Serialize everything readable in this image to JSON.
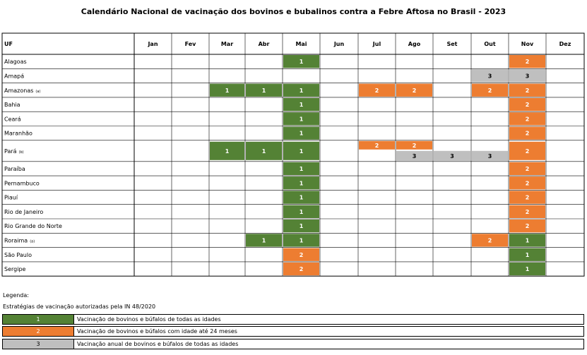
{
  "title": "Calendário Nacional de vacinação dos bovinos e bubalinos contra a Febre Aftosa no Brasil - 2023",
  "header": {
    "uf": "UF",
    "months": [
      "Jan",
      "Fev",
      "Mar",
      "Abr",
      "Mai",
      "Jun",
      "Jul",
      "Ago",
      "Set",
      "Out",
      "Nov",
      "Dez"
    ]
  },
  "colors": {
    "green": "#548235",
    "orange": "#ED7D31",
    "gray": "#BFBFBF"
  },
  "rows": [
    {
      "uf": "Alagoas"
    },
    {
      "uf": "Amapá"
    },
    {
      "uf": "Amazonas",
      "note": "(a)"
    },
    {
      "uf": "Bahia"
    },
    {
      "uf": "Ceará"
    },
    {
      "uf": "Maranhão"
    },
    {
      "uf": "Pará",
      "note": "(b)"
    },
    {
      "uf": "Paraíba"
    },
    {
      "uf": "Pernambuco"
    },
    {
      "uf": "Piauí"
    },
    {
      "uf": "Rio de Janeiro"
    },
    {
      "uf": "Rio Grande do Norte"
    },
    {
      "uf": "Roraima",
      "note": "(a)"
    },
    {
      "uf": "São Paulo"
    },
    {
      "uf": "Sergipe"
    }
  ],
  "blocks": [
    {
      "row": 0,
      "month": "Mai",
      "type": "1"
    },
    {
      "row": 0,
      "month": "Nov",
      "type": "2"
    },
    {
      "row": 1,
      "month": "Out",
      "type": "3"
    },
    {
      "row": 1,
      "month": "Nov",
      "type": "3"
    },
    {
      "row": 2,
      "month": "Mar",
      "type": "1"
    },
    {
      "row": 2,
      "month": "Abr",
      "type": "1"
    },
    {
      "row": 2,
      "month": "Mai",
      "type": "1"
    },
    {
      "row": 2,
      "month": "Jul",
      "type": "2"
    },
    {
      "row": 2,
      "month": "Ago",
      "type": "2"
    },
    {
      "row": 2,
      "month": "Out",
      "type": "2"
    },
    {
      "row": 2,
      "month": "Nov",
      "type": "2"
    },
    {
      "row": 3,
      "month": "Mai",
      "type": "1"
    },
    {
      "row": 3,
      "month": "Nov",
      "type": "2"
    },
    {
      "row": 4,
      "month": "Mai",
      "type": "1"
    },
    {
      "row": 4,
      "month": "Nov",
      "type": "2"
    },
    {
      "row": 5,
      "month": "Mai",
      "type": "1"
    },
    {
      "row": 5,
      "month": "Nov",
      "type": "2"
    },
    {
      "row": 6,
      "month": "Mar",
      "type": "1"
    },
    {
      "row": 6,
      "month": "Abr",
      "type": "1"
    },
    {
      "row": 6,
      "month": "Mai",
      "type": "1"
    },
    {
      "row": 6,
      "month": "Jul",
      "type": "2",
      "sub": "top"
    },
    {
      "row": 6,
      "month": "Ago",
      "type": "2",
      "sub": "top"
    },
    {
      "row": 6,
      "month": "Ago",
      "type": "3",
      "sub": "bottom"
    },
    {
      "row": 6,
      "month": "Set",
      "type": "3",
      "sub": "bottom"
    },
    {
      "row": 6,
      "month": "Out",
      "type": "3",
      "sub": "bottom"
    },
    {
      "row": 6,
      "month": "Nov",
      "type": "2"
    },
    {
      "row": 7,
      "month": "Mai",
      "type": "1"
    },
    {
      "row": 7,
      "month": "Nov",
      "type": "2"
    },
    {
      "row": 8,
      "month": "Mai",
      "type": "1"
    },
    {
      "row": 8,
      "month": "Nov",
      "type": "2"
    },
    {
      "row": 9,
      "month": "Mai",
      "type": "1"
    },
    {
      "row": 9,
      "month": "Nov",
      "type": "2"
    },
    {
      "row": 10,
      "month": "Mai",
      "type": "1"
    },
    {
      "row": 10,
      "month": "Nov",
      "type": "2"
    },
    {
      "row": 11,
      "month": "Mai",
      "type": "1"
    },
    {
      "row": 11,
      "month": "Nov",
      "type": "2"
    },
    {
      "row": 12,
      "month": "Abr",
      "type": "1"
    },
    {
      "row": 12,
      "month": "Mai",
      "type": "1"
    },
    {
      "row": 12,
      "month": "Out",
      "type": "2"
    },
    {
      "row": 12,
      "month": "Nov",
      "type": "1"
    },
    {
      "row": 13,
      "month": "Mai",
      "type": "2"
    },
    {
      "row": 13,
      "month": "Nov",
      "type": "1"
    },
    {
      "row": 14,
      "month": "Mai",
      "type": "2"
    },
    {
      "row": 14,
      "month": "Nov",
      "type": "1"
    }
  ],
  "legend": {
    "title": "Legenda:",
    "subtitle": "Estratégias de vacinação autorizadas pela IN 48/2020",
    "items": [
      {
        "code": "1",
        "color": "green",
        "text": "Vacinação de bovinos e búfalos de todas as idades"
      },
      {
        "code": "2",
        "color": "orange",
        "text": "Vacinação de bovinos e búfalos com idade até 24 meses"
      },
      {
        "code": "3",
        "color": "gray",
        "text": "Vacinação anual de bovinos e búfalos de todas as idades"
      }
    ]
  }
}
